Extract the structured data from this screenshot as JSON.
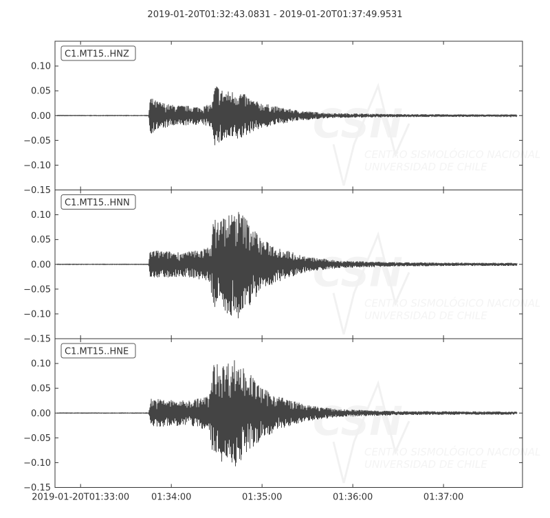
{
  "chart_data": {
    "type": "line",
    "title": "2019-01-20T01:32:43.0831  -  2019-01-20T01:37:49.9531",
    "start_time": "2019-01-20T01:32:43.0831",
    "end_time": "2019-01-20T01:37:49.9531",
    "xlabel": "",
    "ylabel": "",
    "ylim": [
      -0.15,
      0.15
    ],
    "yticks": [
      "0.10",
      "0.05",
      "0.00",
      "−0.05",
      "−0.10",
      "−0.15"
    ],
    "ytick_values": [
      0.1,
      0.05,
      0.0,
      -0.05,
      -0.1,
      -0.15
    ],
    "xticks": [
      "2019-01-20T01:33:00",
      "01:34:00",
      "01:35:00",
      "01:36:00",
      "01:37:00"
    ],
    "xtick_times": [
      "01:33:00",
      "01:34:00",
      "01:35:00",
      "01:36:00",
      "01:37:00"
    ],
    "grid": false,
    "line_color": "#444444",
    "watermark": {
      "logo": "CSN",
      "line1": "CENTRO SISMOLÓGICO NACIONAL",
      "line2": "UNIVERSIDAD DE CHILE"
    },
    "series": [
      {
        "name": "C1.MT15..HNZ",
        "envelope": [
          [
            "01:32:43",
            0.0005
          ],
          [
            "01:33:45",
            0.0005
          ],
          [
            "01:33:46",
            0.038
          ],
          [
            "01:33:50",
            0.03
          ],
          [
            "01:34:00",
            0.022
          ],
          [
            "01:34:20",
            0.018
          ],
          [
            "01:34:27",
            0.025
          ],
          [
            "01:34:29",
            0.065
          ],
          [
            "01:34:35",
            0.05
          ],
          [
            "01:34:45",
            0.05
          ],
          [
            "01:34:55",
            0.03
          ],
          [
            "01:35:10",
            0.018
          ],
          [
            "01:35:25",
            0.01
          ],
          [
            "01:35:45",
            0.005
          ],
          [
            "01:36:30",
            0.003
          ],
          [
            "01:37:50",
            0.002
          ]
        ]
      },
      {
        "name": "C1.MT15..HNN",
        "envelope": [
          [
            "01:32:43",
            0.0005
          ],
          [
            "01:33:45",
            0.0005
          ],
          [
            "01:33:46",
            0.03
          ],
          [
            "01:33:55",
            0.027
          ],
          [
            "01:34:10",
            0.025
          ],
          [
            "01:34:25",
            0.035
          ],
          [
            "01:34:28",
            0.09
          ],
          [
            "01:34:35",
            0.1
          ],
          [
            "01:34:45",
            0.11
          ],
          [
            "01:34:52",
            0.085
          ],
          [
            "01:35:00",
            0.05
          ],
          [
            "01:35:15",
            0.03
          ],
          [
            "01:35:30",
            0.015
          ],
          [
            "01:35:50",
            0.008
          ],
          [
            "01:36:30",
            0.004
          ],
          [
            "01:37:50",
            0.003
          ]
        ]
      },
      {
        "name": "C1.MT15..HNE",
        "envelope": [
          [
            "01:32:43",
            0.0005
          ],
          [
            "01:33:45",
            0.0005
          ],
          [
            "01:33:46",
            0.03
          ],
          [
            "01:33:55",
            0.028
          ],
          [
            "01:34:10",
            0.025
          ],
          [
            "01:34:25",
            0.035
          ],
          [
            "01:34:28",
            0.1
          ],
          [
            "01:34:35",
            0.1
          ],
          [
            "01:34:42",
            0.11
          ],
          [
            "01:34:52",
            0.08
          ],
          [
            "01:35:00",
            0.05
          ],
          [
            "01:35:15",
            0.03
          ],
          [
            "01:35:30",
            0.016
          ],
          [
            "01:35:50",
            0.008
          ],
          [
            "01:36:30",
            0.004
          ],
          [
            "01:37:50",
            0.003
          ]
        ]
      }
    ]
  }
}
